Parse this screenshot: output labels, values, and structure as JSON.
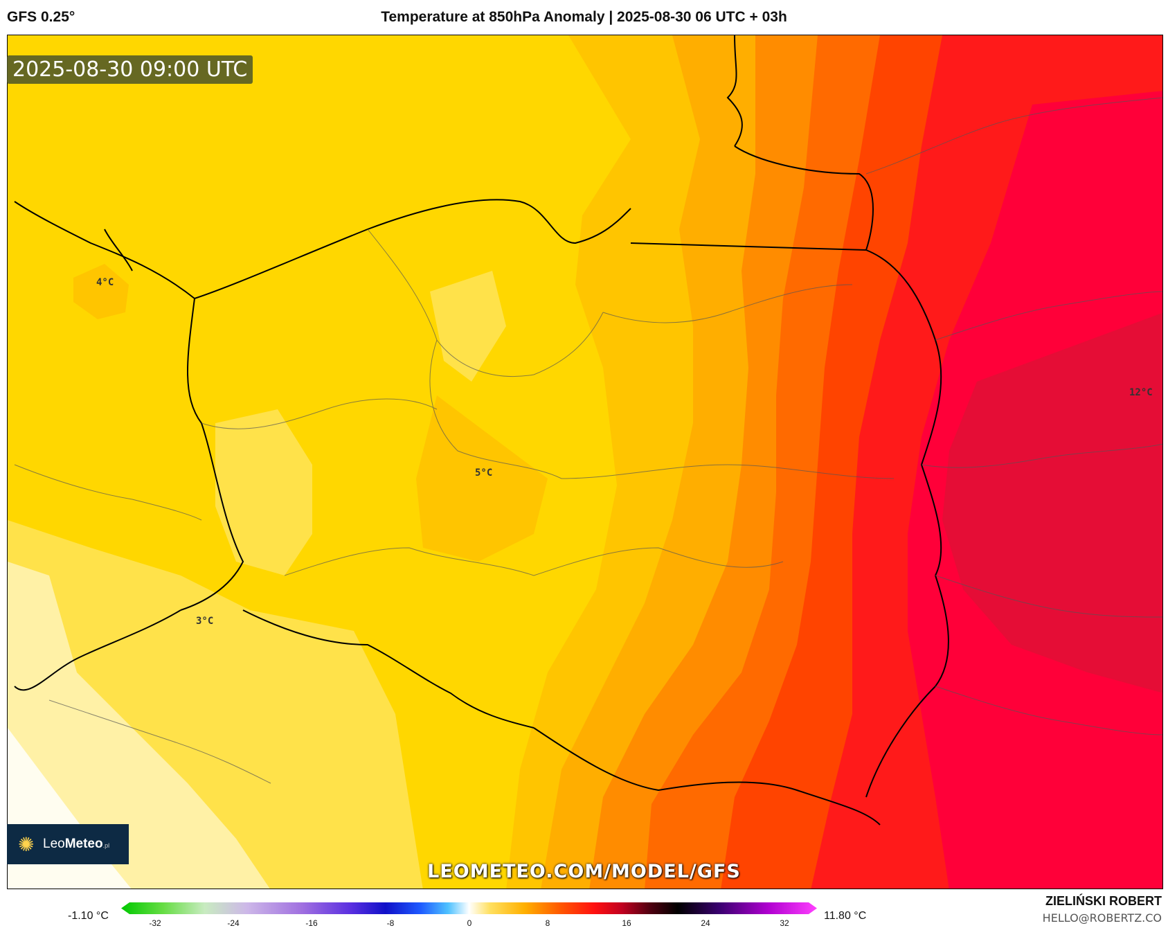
{
  "header": {
    "model": "GFS 0.25°",
    "title": "Temperature at 850hPa Anomaly | 2025-08-30 06 UTC + 03h"
  },
  "map": {
    "valid_time": "2025-08-30 09:00 UTC",
    "watermark": "LEOMETEO.COM/MODEL/GFS",
    "labels": [
      {
        "id": "lbl-4",
        "text": "4°C"
      },
      {
        "id": "lbl-5",
        "text": "5°C"
      },
      {
        "id": "lbl-3",
        "text": "3°C"
      },
      {
        "id": "lbl-12",
        "text": "12°C"
      }
    ],
    "colors": {
      "cold_white": "#fff7d0",
      "pale_yellow": "#ffef7a",
      "yellow": "#ffd700",
      "gold": "#ffc500",
      "orange_light": "#ffae00",
      "orange": "#ff8c00",
      "orange_dark": "#ff6a00",
      "red_orange": "#ff4400",
      "red": "#ff1a1a",
      "crimson": "#ff0039",
      "deep_crimson": "#e50d36"
    }
  },
  "logo": {
    "brand_left": "Leo",
    "brand_right": "Meteo",
    "brand_sup": ".pl",
    "icon": "sun-icon"
  },
  "legend": {
    "min_value": "-1.10 °C",
    "max_value": "11.80 °C",
    "ticks": [
      "-32",
      "-24",
      "-16",
      "-8",
      "0",
      "8",
      "16",
      "24",
      "32"
    ]
  },
  "credits": {
    "author": "ZIELIŃSKI ROBERT",
    "email": "HELLO@ROBERTZ.CO"
  }
}
